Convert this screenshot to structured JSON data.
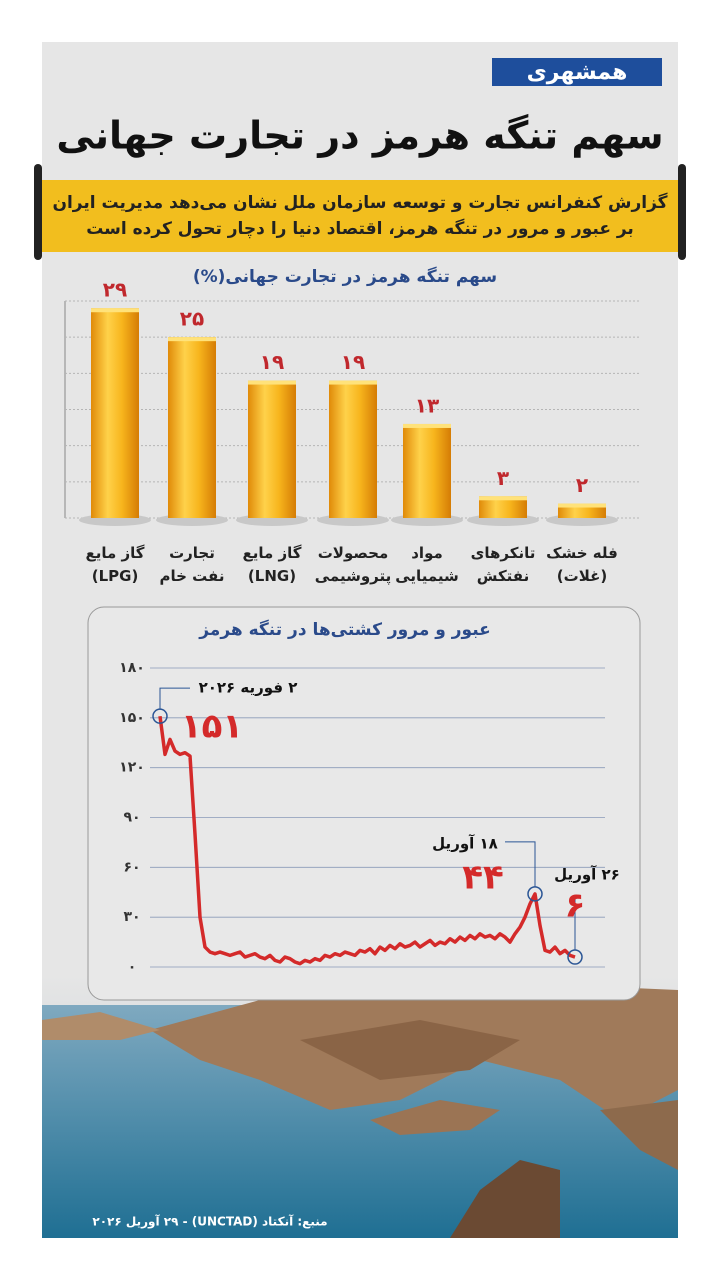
{
  "header": {
    "logo": "همشهری",
    "title": "سهم تنگه هرمز در تجارت جهانی",
    "subtitle": [
      "گزارش کنفرانس تجارت و توسعه سازمان ملل نشان می‌دهد مدیریت ایران",
      "بر عبور و مرور در تنگه هرمز، اقتصاد دنیا را دچار تحول کرده است"
    ]
  },
  "chart_data": [
    {
      "type": "bar",
      "title": "سهم تنگه هرمز در تجارت جهانی(%)",
      "categories": [
        "گاز مایع\n(LPG)",
        "تجارت\nنفت خام",
        "گاز مایع\n(LNG)",
        "محصولات\nپتروشیمی",
        "مواد\nشیمیایی",
        "تانکرهای\nنفتکش",
        "فله خشک\n(غلات)"
      ],
      "values": [
        29,
        25,
        19,
        19,
        13,
        3,
        2
      ],
      "value_labels": [
        "۲۹",
        "۲۵",
        "۱۹",
        "۱۹",
        "۱۳",
        "۳",
        "۲"
      ],
      "color": "#f0a818",
      "ylim": [
        0,
        30
      ],
      "yticks": [
        0,
        5,
        10,
        15,
        20,
        25,
        30
      ],
      "grid": true
    },
    {
      "type": "line",
      "title": "عبور و مرور کشتی‌ها در تنگه هرمز",
      "categories": [
        "۲ فوریه ۲۰۲۶",
        null,
        null,
        null,
        null,
        null,
        null,
        null,
        null,
        null,
        null,
        null,
        null,
        null,
        null,
        null,
        null,
        null,
        null,
        null,
        null,
        null,
        null,
        null,
        null,
        null,
        null,
        null,
        null,
        null,
        null,
        null,
        null,
        null,
        null,
        null,
        null,
        null,
        null,
        null,
        null,
        null,
        null,
        null,
        null,
        null,
        null,
        null,
        null,
        null,
        null,
        null,
        null,
        null,
        null,
        null,
        null,
        null,
        null,
        null,
        null,
        null,
        null,
        null,
        null,
        null,
        null,
        null,
        null,
        null,
        null,
        null,
        null,
        null,
        null,
        "۱۸ آوریل",
        null,
        null,
        null,
        null,
        null,
        null,
        null,
        "۲۶ آوریل"
      ],
      "values": [
        151,
        128,
        137,
        130,
        128,
        129,
        127,
        80,
        30,
        12,
        9,
        8,
        9,
        8,
        7,
        8,
        9,
        6,
        7,
        8,
        6,
        5,
        7,
        4,
        3,
        6,
        5,
        3,
        2,
        4,
        3,
        5,
        4,
        7,
        6,
        8,
        7,
        9,
        8,
        7,
        10,
        9,
        11,
        8,
        12,
        10,
        13,
        11,
        14,
        12,
        13,
        15,
        12,
        14,
        16,
        13,
        15,
        14,
        17,
        15,
        18,
        16,
        19,
        17,
        20,
        18,
        19,
        17,
        20,
        18,
        15,
        20,
        24,
        30,
        38,
        44,
        25,
        10,
        9,
        12,
        8,
        10,
        7,
        6
      ],
      "value_labels": [
        "۱۵۱",
        null,
        null,
        null,
        null,
        null,
        null,
        null,
        null,
        null,
        null,
        null,
        null,
        null,
        null,
        null,
        null,
        null,
        null,
        null,
        null,
        null,
        null,
        null,
        null,
        null,
        null,
        null,
        null,
        null,
        null,
        null,
        null,
        null,
        null,
        null,
        null,
        null,
        null,
        null,
        null,
        null,
        null,
        null,
        null,
        null,
        null,
        null,
        null,
        null,
        null,
        null,
        null,
        null,
        null,
        null,
        null,
        null,
        null,
        null,
        null,
        null,
        null,
        null,
        null,
        null,
        null,
        null,
        null,
        null,
        null,
        null,
        null,
        null,
        null,
        "۴۴",
        null,
        null,
        null,
        null,
        null,
        null,
        null,
        "۶"
      ],
      "color": "#d42a2a",
      "ylim": [
        0,
        180
      ],
      "yticks": [
        {
          "value": 0,
          "label": "۰"
        },
        {
          "value": 30,
          "label": "۳۰"
        },
        {
          "value": 60,
          "label": "۶۰"
        },
        {
          "value": 90,
          "label": "۹۰"
        },
        {
          "value": 120,
          "label": "۱۲۰"
        },
        {
          "value": 150,
          "label": "۱۵۰"
        },
        {
          "value": 180,
          "label": "۱۸۰"
        }
      ],
      "grid": true
    }
  ],
  "source": "منبع: آنکتاد (UNCTAD) - ۲۹ آوریل ۲۰۲۶"
}
